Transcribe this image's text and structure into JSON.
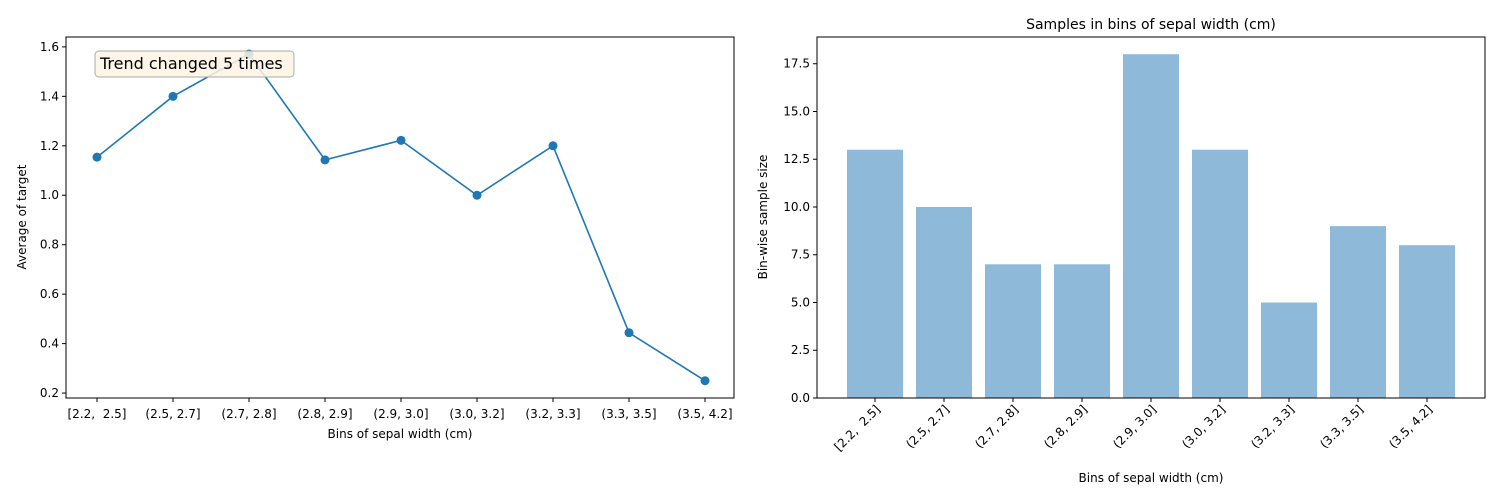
{
  "chart_data": [
    {
      "type": "line",
      "title": "",
      "xlabel": "Bins of sepal width (cm)",
      "ylabel": "Average of target",
      "categories": [
        "[2.2,  2.5]",
        "(2.5, 2.7]",
        "(2.7, 2.8]",
        "(2.8, 2.9]",
        "(2.9, 3.0]",
        "(3.0, 3.2]",
        "(3.2, 3.3]",
        "(3.3, 3.5]",
        "(3.5, 4.2]"
      ],
      "values": [
        1.154,
        1.4,
        1.571,
        1.143,
        1.222,
        1.0,
        1.2,
        0.444,
        0.25
      ],
      "ylim": [
        0.18,
        1.64
      ],
      "yticks": [
        0.2,
        0.4,
        0.6,
        0.8,
        1.0,
        1.2,
        1.4,
        1.6
      ],
      "ytick_labels": [
        "0.2",
        "0.4",
        "0.6",
        "0.8",
        "1.0",
        "1.2",
        "1.4",
        "1.6"
      ],
      "annotation": "Trend changed 5 times",
      "color": "#1f77b4",
      "annotation_box_color": "#fdf3e3",
      "grid": false
    },
    {
      "type": "bar",
      "title": "Samples in bins of sepal width (cm)",
      "xlabel": "Bins of sepal width (cm)",
      "ylabel": "Bin-wise sample size",
      "categories": [
        "[2.2,  2.5]",
        "(2.5, 2.7]",
        "(2.7, 2.8]",
        "(2.8, 2.9]",
        "(2.9, 3.0]",
        "(3.0, 3.2]",
        "(3.2, 3.3]",
        "(3.3, 3.5]",
        "(3.5, 4.2]"
      ],
      "values": [
        13,
        10,
        7,
        7,
        18,
        13,
        5,
        9,
        8
      ],
      "ylim": [
        0,
        18.9
      ],
      "yticks": [
        0,
        2.5,
        5,
        7.5,
        10,
        12.5,
        15,
        17.5
      ],
      "ytick_labels": [
        "0.0",
        "2.5",
        "5.0",
        "7.5",
        "10.0",
        "12.5",
        "15.0",
        "17.5"
      ],
      "color": "#8fb9d9",
      "grid": false
    }
  ]
}
